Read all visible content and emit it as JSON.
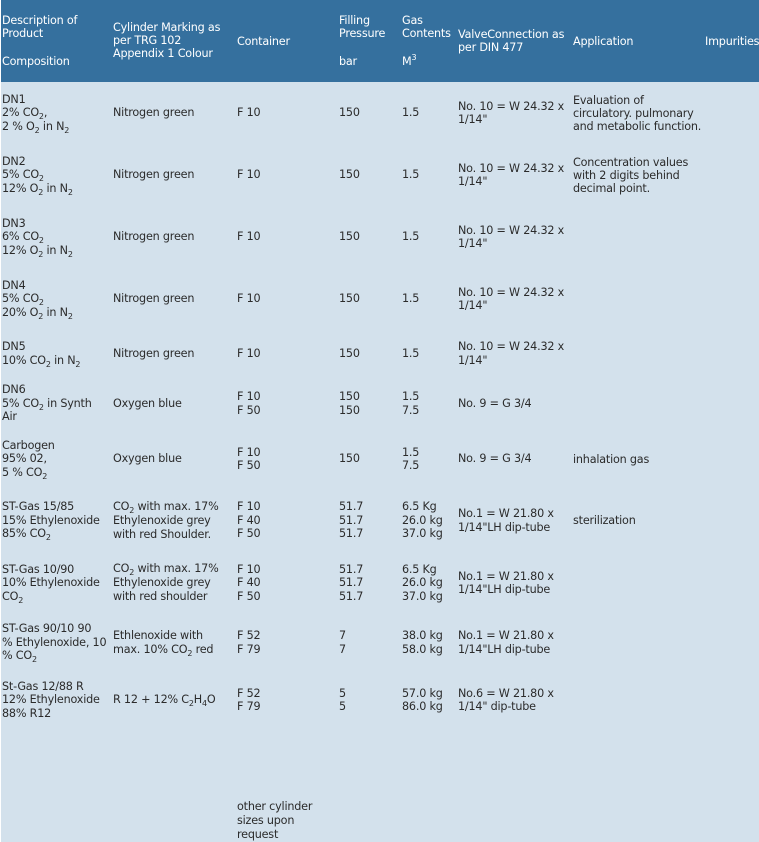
{
  "table": {
    "header": {
      "description": {
        "line1": "Description of",
        "line2": "Product",
        "line3": "Composition"
      },
      "marking": {
        "line1": "Cylinder Marking as",
        "line2": "per TRG 102",
        "line3": "Appendix 1 Colour"
      },
      "container": "Container",
      "pressure": {
        "line1": "Filling",
        "line2": "Pressure",
        "unit": "bar"
      },
      "contents": {
        "line1": "Gas",
        "line2": "Contents",
        "unit_base": "M",
        "unit_exp": "3"
      },
      "valve": {
        "line1": "ValveConnection as",
        "line2": "per DIN 477"
      },
      "application": "Application",
      "impurities": "Impurities"
    },
    "rows": [
      {
        "name": "DN1",
        "comp": [
          [
            "2% CO",
            "2",
            ","
          ],
          [
            "2 % O",
            "2",
            " in N",
            "2"
          ]
        ],
        "marking": "Nitrogen green",
        "container": [
          "F 10"
        ],
        "pressure": [
          "150"
        ],
        "contents": [
          "1.5"
        ],
        "valve": [
          "No. 10 = W 24.32 x",
          "1/14\""
        ],
        "application": [
          "Evaluation of",
          "circulatory. pulmonary",
          "and metabolic function."
        ]
      },
      {
        "name": "DN2",
        "comp": [
          [
            "5% CO",
            "2",
            ""
          ],
          [
            "12% O",
            "2",
            " in N",
            "2"
          ]
        ],
        "marking": "Nitrogen green",
        "container": [
          "F 10"
        ],
        "pressure": [
          "150"
        ],
        "contents": [
          "1.5"
        ],
        "valve": [
          "No. 10 = W 24.32 x",
          "1/14\""
        ],
        "application": [
          "Concentration values",
          "with 2 digits behind",
          "decimal point."
        ]
      },
      {
        "name": "DN3",
        "comp": [
          [
            "6% CO",
            "2",
            ""
          ],
          [
            "12% O",
            "2",
            " in N",
            "2"
          ]
        ],
        "marking": "Nitrogen green",
        "container": [
          "F 10"
        ],
        "pressure": [
          "150"
        ],
        "contents": [
          "1.5"
        ],
        "valve": [
          "No. 10 = W 24.32 x",
          "1/14\""
        ],
        "application": []
      },
      {
        "name": "DN4",
        "comp": [
          [
            "5% CO",
            "2",
            ""
          ],
          [
            "20% O",
            "2",
            " in N",
            "2"
          ]
        ],
        "marking": "Nitrogen green",
        "container": [
          "F 10"
        ],
        "pressure": [
          "150"
        ],
        "contents": [
          "1.5"
        ],
        "valve": [
          "No. 10 = W 24.32 x",
          "1/14\""
        ],
        "application": []
      },
      {
        "name": "DN5",
        "comp": [
          [
            "10% CO",
            "2",
            " in N",
            "2"
          ]
        ],
        "marking": "Nitrogen green",
        "container": [
          "F 10"
        ],
        "pressure": [
          "150"
        ],
        "contents": [
          "1.5"
        ],
        "valve": [
          "No. 10 = W 24.32 x",
          "1/14\""
        ],
        "application": []
      },
      {
        "name": "DN6",
        "comp": [
          [
            "5% CO",
            "2",
            " in Synth"
          ],
          [
            "Air"
          ]
        ],
        "marking": "Oxygen blue",
        "container": [
          "F 10",
          "F 50"
        ],
        "pressure": [
          "150",
          "150"
        ],
        "contents": [
          "1.5",
          "7.5"
        ],
        "valve": [
          "No. 9 = G 3/4"
        ],
        "application": []
      },
      {
        "name": "Carbogen",
        "comp": [
          [
            "95% 02,"
          ],
          [
            "5 % CO",
            "2",
            ""
          ]
        ],
        "marking": "Oxygen blue",
        "container": [
          "F 10",
          "F 50"
        ],
        "pressure": [
          "150"
        ],
        "contents": [
          "1.5",
          "7.5"
        ],
        "valve": [
          "No. 9 = G 3/4"
        ],
        "application": [
          "inhalation gas"
        ]
      },
      {
        "name": "ST-Gas 15/85",
        "comp": [
          [
            "15% Ethylenoxide"
          ],
          [
            "85% CO",
            "2",
            ""
          ]
        ],
        "marking_lines": [
          [
            "CO",
            "2",
            " with max. 17%"
          ],
          [
            "Ethylenoxide grey"
          ],
          [
            "with red Shoulder."
          ]
        ],
        "container": [
          "F 10",
          "F 40",
          "F 50"
        ],
        "pressure": [
          "51.7",
          "51.7",
          "51.7"
        ],
        "contents": [
          "6.5 Kg",
          "26.0 kg",
          "37.0 kg"
        ],
        "valve": [
          "No.1 = W 21.80 x",
          "1/14\"LH dip-tube"
        ],
        "application": [
          "sterilization"
        ]
      },
      {
        "name": "ST-Gas 10/90",
        "comp": [
          [
            "10% Ethylenoxide"
          ],
          [
            "CO",
            "2",
            ""
          ]
        ],
        "marking_lines": [
          [
            "CO",
            "2",
            " with max. 17%"
          ],
          [
            "Ethylenoxide grey"
          ],
          [
            "with red shoulder"
          ]
        ],
        "container": [
          "F 10",
          "F 40",
          "F 50"
        ],
        "pressure": [
          "51.7",
          "51.7",
          "51.7"
        ],
        "contents": [
          "6.5 Kg",
          "26.0 kg",
          "37.0 kg"
        ],
        "valve": [
          "No.1 = W 21.80 x",
          "1/14\"LH dip-tube"
        ],
        "application": []
      },
      {
        "name": "ST-Gas 90/10 90",
        "comp": [
          [
            "% Ethylenoxide, 10"
          ],
          [
            "% CO",
            "2",
            ""
          ]
        ],
        "marking_lines": [
          [
            "Ethlenoxide with"
          ],
          [
            "max. 10% CO",
            "2",
            " red"
          ]
        ],
        "container": [
          "F 52",
          "F 79"
        ],
        "pressure": [
          "7",
          "7"
        ],
        "contents": [
          "38.0 kg",
          "58.0 kg"
        ],
        "valve": [
          "No.1 = W 21.80 x",
          "1/14\"LH dip-tube"
        ],
        "application": []
      },
      {
        "name": "St-Gas 12/88 R",
        "comp": [
          [
            "12% Ethylenoxide"
          ],
          [
            "88% R12"
          ]
        ],
        "marking_lines": [
          [
            "R 12 + 12% C",
            "2",
            "H",
            "4",
            "O"
          ]
        ],
        "container": [
          "F 52",
          "F 79"
        ],
        "pressure": [
          "5",
          "5"
        ],
        "contents": [
          "57.0 kg",
          "86.0 kg"
        ],
        "valve": [
          "No.6 = W 21.80 x",
          "1/14\" dip-tube"
        ],
        "application": []
      }
    ],
    "footer_note": [
      "other cylinder",
      "sizes upon",
      "request"
    ]
  },
  "colors": {
    "header_bg": "#35709e",
    "header_text": "#ffffff",
    "cell_bg": "#d3e1ec",
    "cell_text": "#2b2b2b"
  }
}
